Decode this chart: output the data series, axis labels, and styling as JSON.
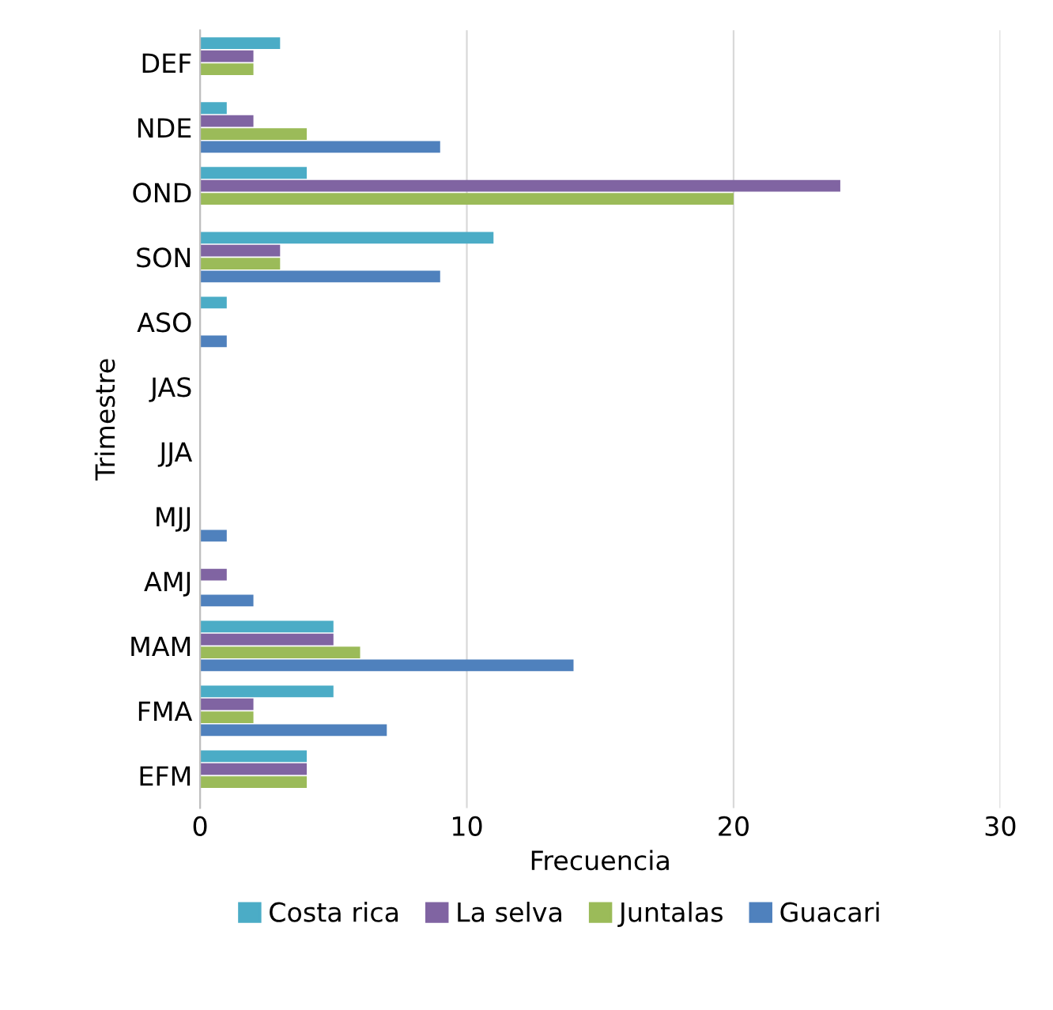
{
  "chart_data": {
    "type": "bar",
    "orientation": "horizontal",
    "xlabel": "Frecuencia",
    "ylabel": "Trimestre",
    "categories": [
      "DEF",
      "NDE",
      "OND",
      "SON",
      "ASO",
      "JAS",
      "JJA",
      "MJJ",
      "AMJ",
      "MAM",
      "FMA",
      "EFM"
    ],
    "series": [
      {
        "name": "Costa rica",
        "color": "#4bacc6",
        "values": [
          3,
          1,
          4,
          11,
          1,
          0,
          0,
          0,
          0,
          5,
          5,
          4
        ]
      },
      {
        "name": "La selva",
        "color": "#8064a2",
        "values": [
          2,
          2,
          24,
          3,
          0,
          0,
          0,
          0,
          1,
          5,
          2,
          4
        ]
      },
      {
        "name": "Juntalas",
        "color": "#9bbb59",
        "values": [
          2,
          4,
          20,
          3,
          0,
          0,
          0,
          0,
          0,
          6,
          2,
          4
        ]
      },
      {
        "name": "Guacari",
        "color": "#4f81bd",
        "values": [
          0,
          9,
          0,
          9,
          1,
          0,
          0,
          1,
          2,
          14,
          7,
          0
        ]
      }
    ],
    "xlim": [
      0,
      30
    ],
    "xticks": [
      0,
      10,
      20,
      30
    ],
    "grid": "x",
    "legend": "bottom"
  }
}
